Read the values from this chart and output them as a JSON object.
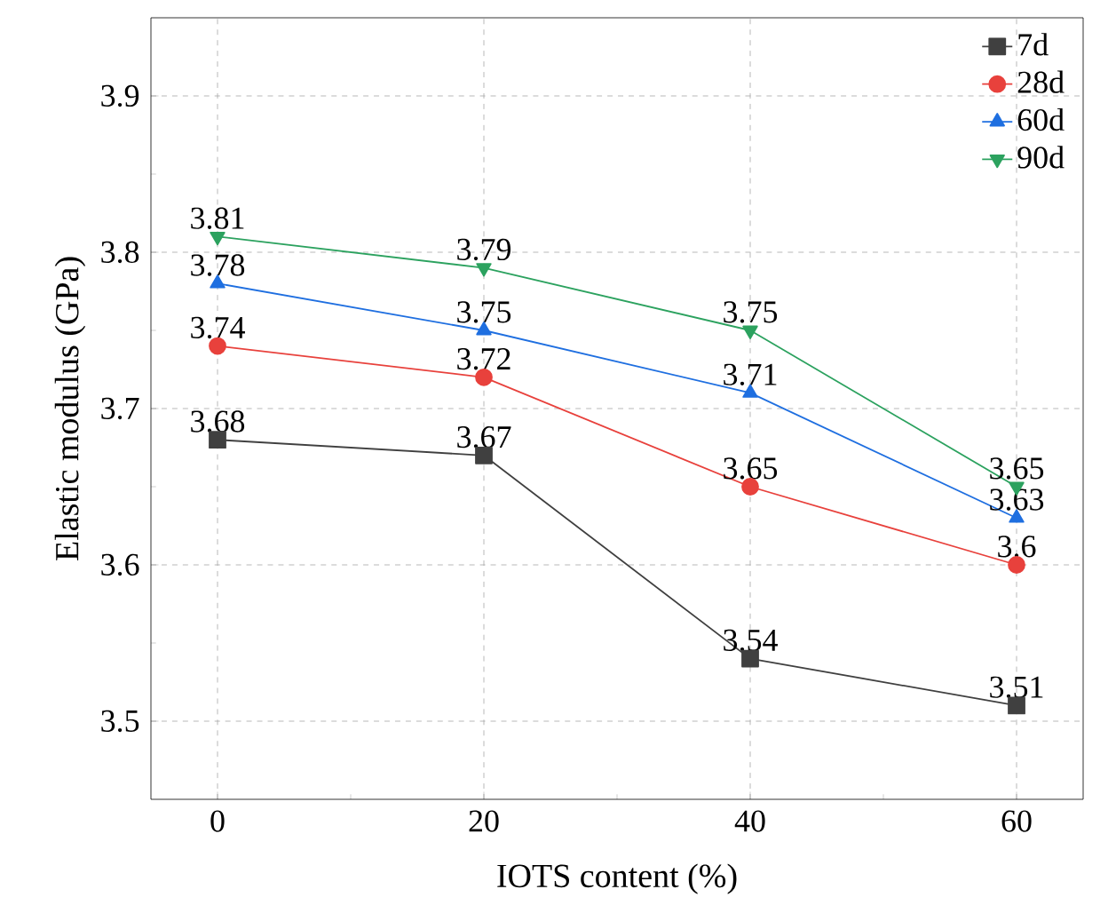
{
  "chart_data": {
    "type": "line",
    "xlabel": "IOTS content (%)",
    "ylabel": "Elastic modulus (GPa)",
    "x": [
      0,
      20,
      40,
      60
    ],
    "series": [
      {
        "name": "7d",
        "color": "#404040",
        "marker": "square",
        "values": [
          3.68,
          3.67,
          3.54,
          3.51
        ],
        "value_labels": [
          "3.68",
          "3.67",
          "3.54",
          "3.51"
        ]
      },
      {
        "name": "28d",
        "color": "#e8413c",
        "marker": "circle",
        "values": [
          3.74,
          3.72,
          3.65,
          3.6
        ],
        "value_labels": [
          "3.74",
          "3.72",
          "3.65",
          "3.6"
        ]
      },
      {
        "name": "60d",
        "color": "#1f6fe0",
        "marker": "triangle",
        "values": [
          3.78,
          3.75,
          3.71,
          3.63
        ],
        "value_labels": [
          "3.78",
          "3.75",
          "3.71",
          "3.63"
        ]
      },
      {
        "name": "90d",
        "color": "#2ca25f",
        "marker": "triangle-down",
        "values": [
          3.81,
          3.79,
          3.75,
          3.65
        ],
        "value_labels": [
          "3.81",
          "3.79",
          "3.75",
          "3.65"
        ]
      }
    ],
    "xlim": [
      -5,
      65
    ],
    "ylim": [
      3.45,
      3.95
    ],
    "xticks": [
      0,
      20,
      40,
      60
    ],
    "yticks": [
      3.5,
      3.6,
      3.7,
      3.8,
      3.9
    ],
    "grid": true,
    "legend": "top right",
    "line_style": "solid"
  }
}
